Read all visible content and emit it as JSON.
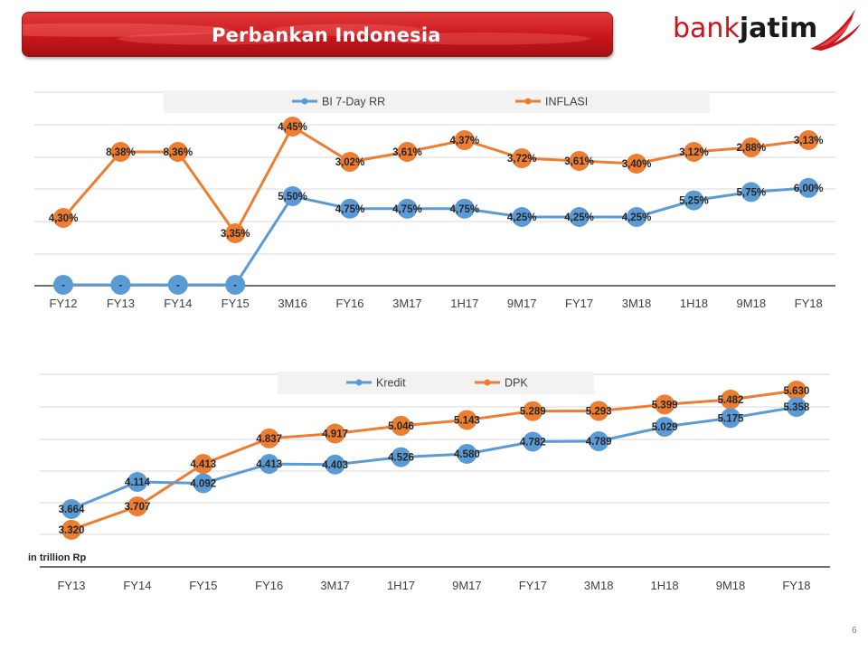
{
  "header": {
    "title": "Perbankan Indonesia",
    "logo_bank": "bank",
    "logo_jatim": "jatim"
  },
  "colors": {
    "banner_red": "#c8161b",
    "series_blue": "#5b9bd5",
    "series_orange": "#ed7d31"
  },
  "page_number": "6",
  "units_label": "in trillion Rp",
  "chart_data": [
    {
      "type": "line",
      "categories": [
        "FY12",
        "FY13",
        "FY14",
        "FY15",
        "3M16",
        "FY16",
        "3M17",
        "1H17",
        "9M17",
        "FY17",
        "3M18",
        "1H18",
        "9M18",
        "FY18"
      ],
      "series": [
        {
          "name": "BI 7-Day RR",
          "color": "#5b9bd5",
          "values": [
            null,
            null,
            null,
            null,
            5.5,
            4.75,
            4.75,
            4.75,
            4.25,
            4.25,
            4.25,
            5.25,
            5.75,
            6.0
          ],
          "labels": [
            "-",
            "-",
            "-",
            "-",
            "5,50%",
            "4,75%",
            "4,75%",
            "4,75%",
            "4,25%",
            "4,25%",
            "4,25%",
            "5,25%",
            "5,75%",
            "6,00%"
          ]
        },
        {
          "name": "INFLASI",
          "color": "#ed7d31",
          "values": [
            4.3,
            8.38,
            8.36,
            3.35,
            4.45,
            3.02,
            3.61,
            4.37,
            3.72,
            3.61,
            3.4,
            3.12,
            2.88,
            3.13
          ],
          "labels": [
            "4,30%",
            "8,38%",
            "8,36%",
            "3,35%",
            "4,45%",
            "3,02%",
            "3,61%",
            "4,37%",
            "3,72%",
            "3,61%",
            "3,40%",
            "3,12%",
            "2,88%",
            "3,13%"
          ]
        }
      ],
      "legend": "top",
      "grid": true
    },
    {
      "type": "line",
      "categories": [
        "FY13",
        "FY14",
        "FY15",
        "FY16",
        "3M17",
        "1H17",
        "9M17",
        "FY17",
        "3M18",
        "1H18",
        "9M18",
        "FY18"
      ],
      "series": [
        {
          "name": "Kredit",
          "color": "#5b9bd5",
          "values": [
            3664,
            4114,
            4092,
            4413,
            4403,
            4526,
            4580,
            4782,
            4789,
            5029,
            5175,
            5358
          ],
          "labels": [
            "3.664",
            "4.114",
            "4.092",
            "4.413",
            "4.403",
            "4.526",
            "4.580",
            "4.782",
            "4.789",
            "5.029",
            "5.175",
            "5.358"
          ]
        },
        {
          "name": "DPK",
          "color": "#ed7d31",
          "values": [
            3320,
            3707,
            4413,
            4837,
            4917,
            5046,
            5143,
            5289,
            5293,
            5399,
            5482,
            5630
          ],
          "labels": [
            "3.320",
            "3.707",
            "4.413",
            "4.837",
            "4.917",
            "5.046",
            "5.143",
            "5.289",
            "5.293",
            "5.399",
            "5.482",
            "5.630"
          ]
        }
      ],
      "legend": "top",
      "grid": true,
      "ylabel": "in trillion Rp"
    }
  ]
}
